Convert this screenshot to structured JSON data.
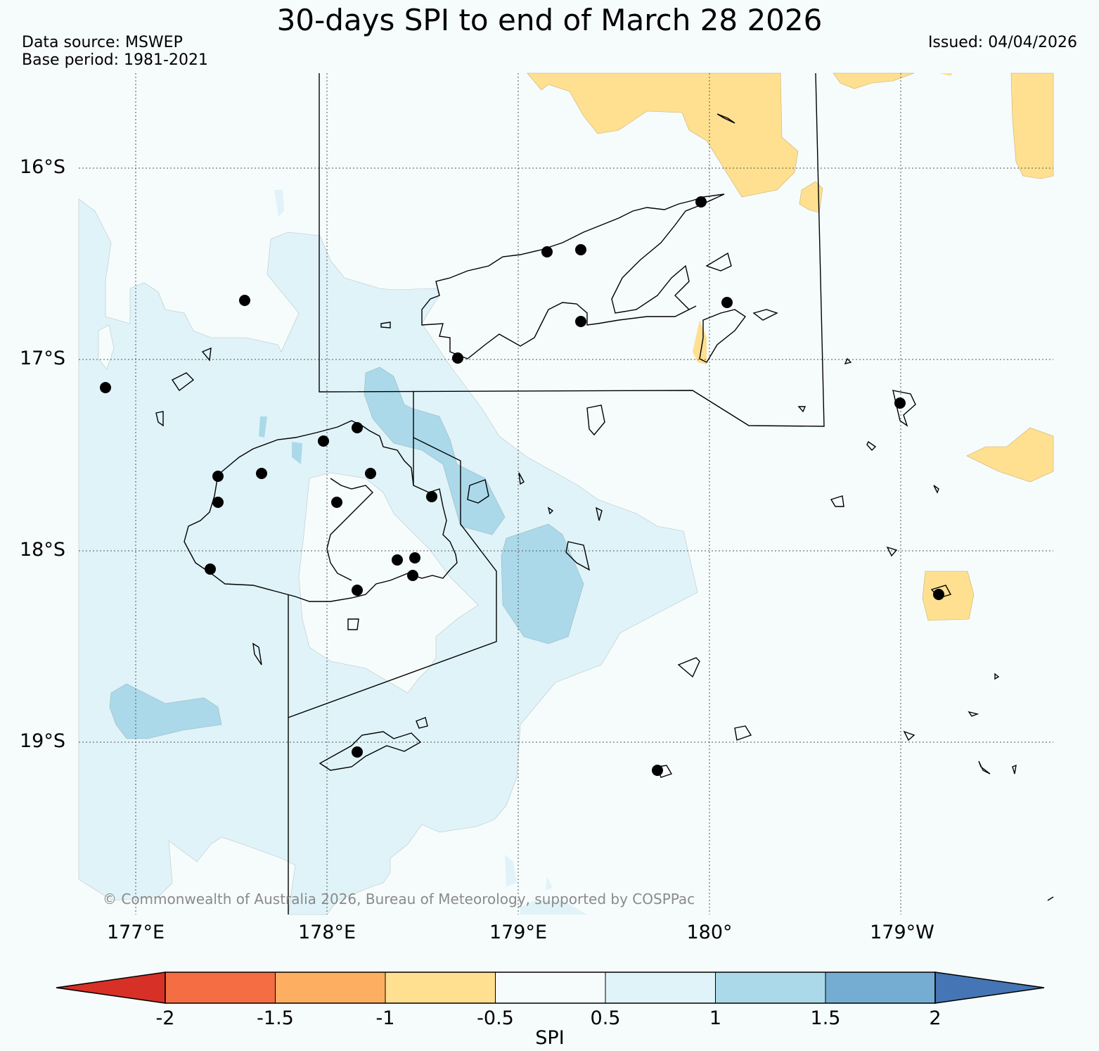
{
  "title": "30-days SPI to end of March 28 2026",
  "data_source": "Data source: MSWEP",
  "base_period": "Base period: 1981-2021",
  "issued": "Issued: 04/04/2026",
  "copyright": "© Commonwealth of Australia 2026, Bureau of Meteorology, supported by COSPPac",
  "lat_labels": [
    "16°S",
    "17°S",
    "18°S",
    "19°S"
  ],
  "lon_labels": [
    "177°E",
    "178°E",
    "179°E",
    "180°",
    "179°W"
  ],
  "colorbar": {
    "label": "SPI",
    "ticks": [
      "-2",
      "-1.5",
      "-1",
      "-0.5",
      "0.5",
      "1",
      "1.5",
      "2"
    ],
    "colors": [
      "#d73027",
      "#f46d43",
      "#fdae61",
      "#fee090",
      "#f6fbfc",
      "#e0f3f8",
      "#abd9e9",
      "#74add1",
      "#4575b4"
    ]
  }
}
